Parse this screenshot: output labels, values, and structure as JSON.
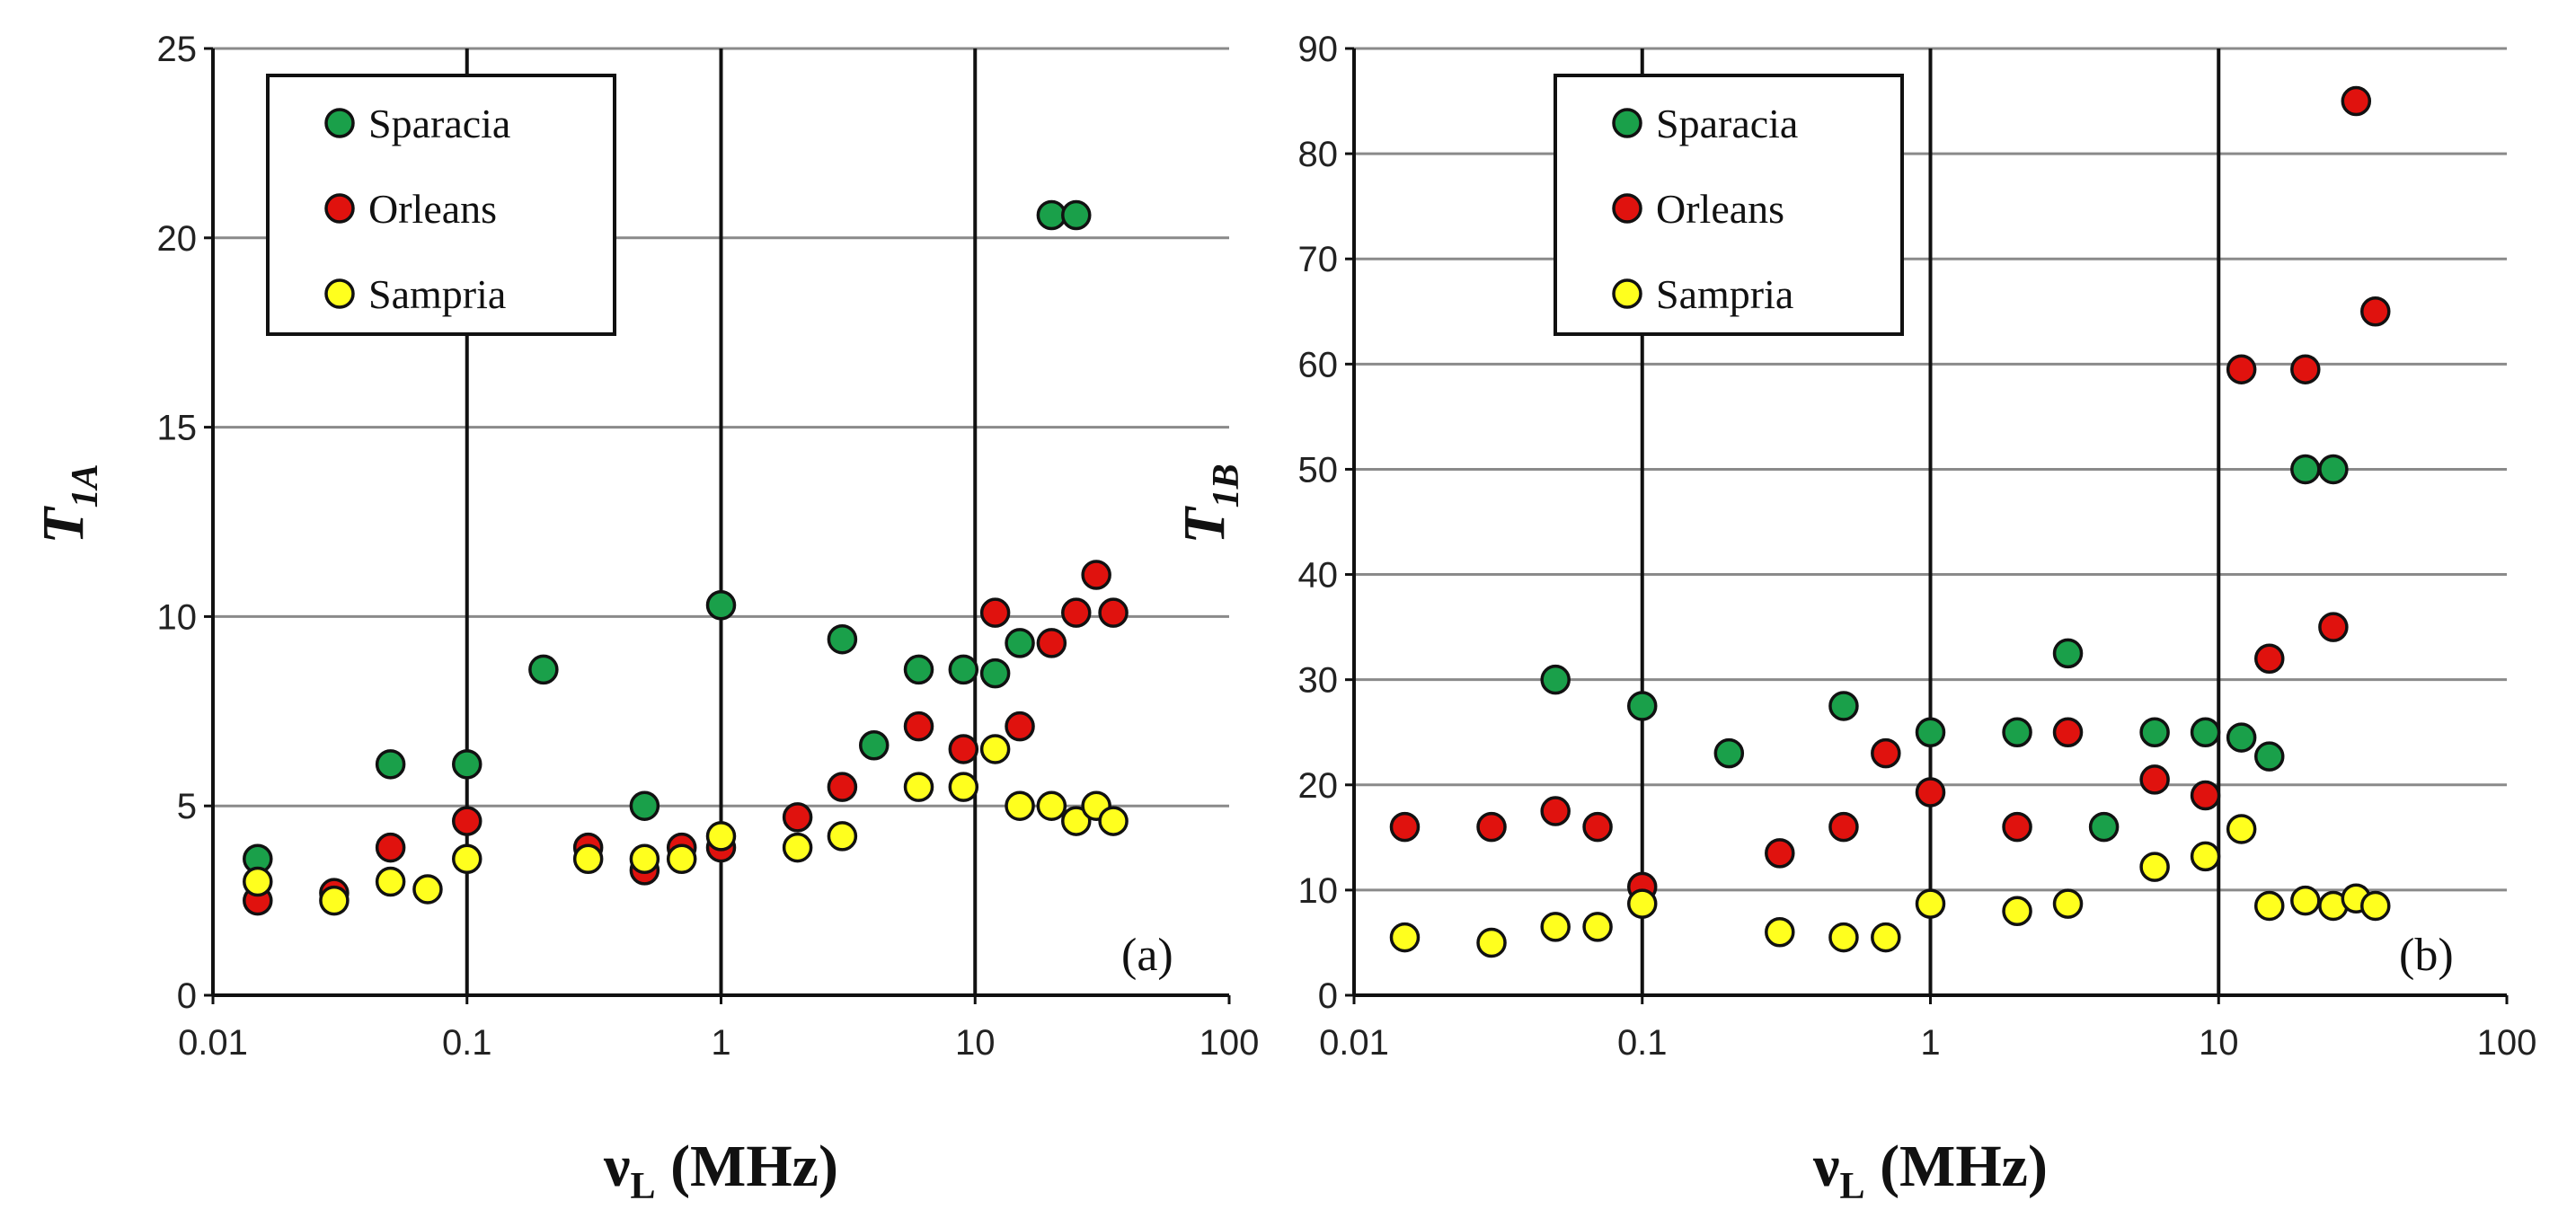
{
  "chart_data": [
    {
      "type": "scatter",
      "panel_label": "(a)",
      "xscale": "log",
      "xlim": [
        0.01,
        100
      ],
      "ylim": [
        0,
        25
      ],
      "x_ticks": [
        "0.01",
        "0.1",
        "1",
        "10",
        "100"
      ],
      "y_ticks": [
        "0",
        "5",
        "10",
        "15",
        "20",
        "25"
      ],
      "xlabel": {
        "main": "ν",
        "sub": "L",
        "rest": " (MHz)"
      },
      "ylabel": {
        "main": "T",
        "sub": "1A"
      },
      "legend_position": "top-left",
      "series": [
        {
          "name": "Sparacia",
          "color": "#1aa04a",
          "x": [
            0.015,
            0.05,
            0.1,
            0.2,
            0.5,
            1,
            3,
            4,
            6,
            9,
            12,
            15,
            20,
            25
          ],
          "y": [
            3.6,
            6.1,
            6.1,
            8.6,
            5.0,
            10.3,
            9.4,
            6.6,
            8.6,
            8.6,
            8.5,
            9.3,
            20.6,
            20.6
          ]
        },
        {
          "name": "Orleans",
          "color": "#e0120e",
          "x": [
            0.015,
            0.03,
            0.05,
            0.1,
            0.3,
            0.5,
            0.7,
            1,
            2,
            3,
            6,
            9,
            12,
            15,
            20,
            25,
            30,
            35
          ],
          "y": [
            2.5,
            2.7,
            3.9,
            4.6,
            3.9,
            3.3,
            3.9,
            3.9,
            4.7,
            5.5,
            7.1,
            6.5,
            10.1,
            7.1,
            9.3,
            10.1,
            11.1,
            10.1
          ]
        },
        {
          "name": "Sampria",
          "color": "#ffff1e",
          "x": [
            0.015,
            0.03,
            0.05,
            0.07,
            0.1,
            0.3,
            0.5,
            0.7,
            1,
            2,
            3,
            6,
            9,
            12,
            15,
            20,
            25,
            30,
            35
          ],
          "y": [
            3.0,
            2.5,
            3.0,
            2.8,
            3.6,
            3.6,
            3.6,
            3.6,
            4.2,
            3.9,
            4.2,
            5.5,
            5.5,
            6.5,
            5.0,
            5.0,
            4.6,
            5.0,
            4.6
          ]
        }
      ]
    },
    {
      "type": "scatter",
      "panel_label": "(b)",
      "xscale": "log",
      "xlim": [
        0.01,
        100
      ],
      "ylim": [
        0,
        90
      ],
      "x_ticks": [
        "0.01",
        "0.1",
        "1",
        "10",
        "100"
      ],
      "y_ticks": [
        "0",
        "10",
        "20",
        "30",
        "40",
        "50",
        "60",
        "70",
        "80",
        "90"
      ],
      "xlabel": {
        "main": "ν",
        "sub": "L",
        "rest": " (MHz)"
      },
      "ylabel": {
        "main": "T",
        "sub": "1B"
      },
      "legend_position": "top-left",
      "series": [
        {
          "name": "Sparacia",
          "color": "#1aa04a",
          "x": [
            0.05,
            0.1,
            0.2,
            0.5,
            1,
            2,
            3,
            4,
            6,
            9,
            12,
            15,
            20,
            25
          ],
          "y": [
            30,
            27.5,
            23,
            27.5,
            25,
            25,
            32.5,
            16,
            25,
            25,
            24.5,
            22.7,
            50,
            50
          ]
        },
        {
          "name": "Orleans",
          "color": "#e0120e",
          "x": [
            0.015,
            0.03,
            0.05,
            0.07,
            0.1,
            0.3,
            0.5,
            0.7,
            1,
            2,
            3,
            6,
            9,
            12,
            15,
            20,
            25,
            30,
            35
          ],
          "y": [
            16,
            16,
            17.5,
            16,
            10.3,
            13.5,
            16,
            23,
            19.3,
            16,
            25,
            20.5,
            19,
            59.5,
            32,
            59.5,
            35,
            85,
            65
          ]
        },
        {
          "name": "Sampria",
          "color": "#ffff1e",
          "x": [
            0.015,
            0.03,
            0.05,
            0.07,
            0.1,
            0.3,
            0.5,
            0.7,
            1,
            2,
            3,
            6,
            9,
            12,
            15,
            20,
            25,
            30,
            35
          ],
          "y": [
            5.5,
            5.0,
            6.5,
            6.5,
            8.7,
            6.0,
            5.5,
            5.5,
            8.7,
            8.0,
            8.7,
            12.2,
            13.2,
            15.8,
            8.5,
            9.0,
            8.5,
            9.2,
            8.5
          ]
        }
      ]
    }
  ]
}
